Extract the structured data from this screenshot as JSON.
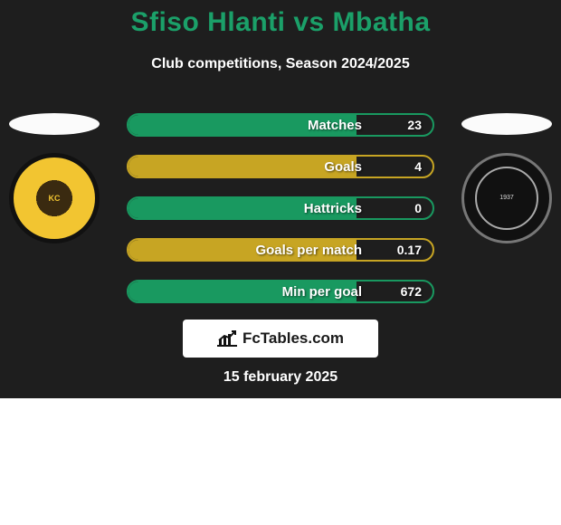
{
  "title": "Sfiso Hlanti vs Mbatha",
  "subtitle": "Club competitions, Season 2024/2025",
  "date": "15 february 2025",
  "brand": "FcTables.com",
  "panel_bg": "#1e1e1e",
  "title_color": "#1ba069",
  "text_color": "#ffffff",
  "left_team": {
    "name": "Kaizer Chiefs",
    "badge_bg": "#f2c531",
    "badge_border": "#111111"
  },
  "right_team": {
    "name": "Orlando Pirates",
    "year": "1937",
    "badge_bg": "#111111",
    "badge_border": "#777777"
  },
  "stats": [
    {
      "label": "Matches",
      "value": "23",
      "fill_pct": 75,
      "fill_color": "#199960",
      "border_color": "#199960"
    },
    {
      "label": "Goals",
      "value": "4",
      "fill_pct": 75,
      "fill_color": "#c7a523",
      "border_color": "#c7a523"
    },
    {
      "label": "Hattricks",
      "value": "0",
      "fill_pct": 75,
      "fill_color": "#199960",
      "border_color": "#199960"
    },
    {
      "label": "Goals per match",
      "value": "0.17",
      "fill_pct": 75,
      "fill_color": "#c7a523",
      "border_color": "#c7a523"
    },
    {
      "label": "Min per goal",
      "value": "672",
      "fill_pct": 75,
      "fill_color": "#199960",
      "border_color": "#199960"
    }
  ]
}
